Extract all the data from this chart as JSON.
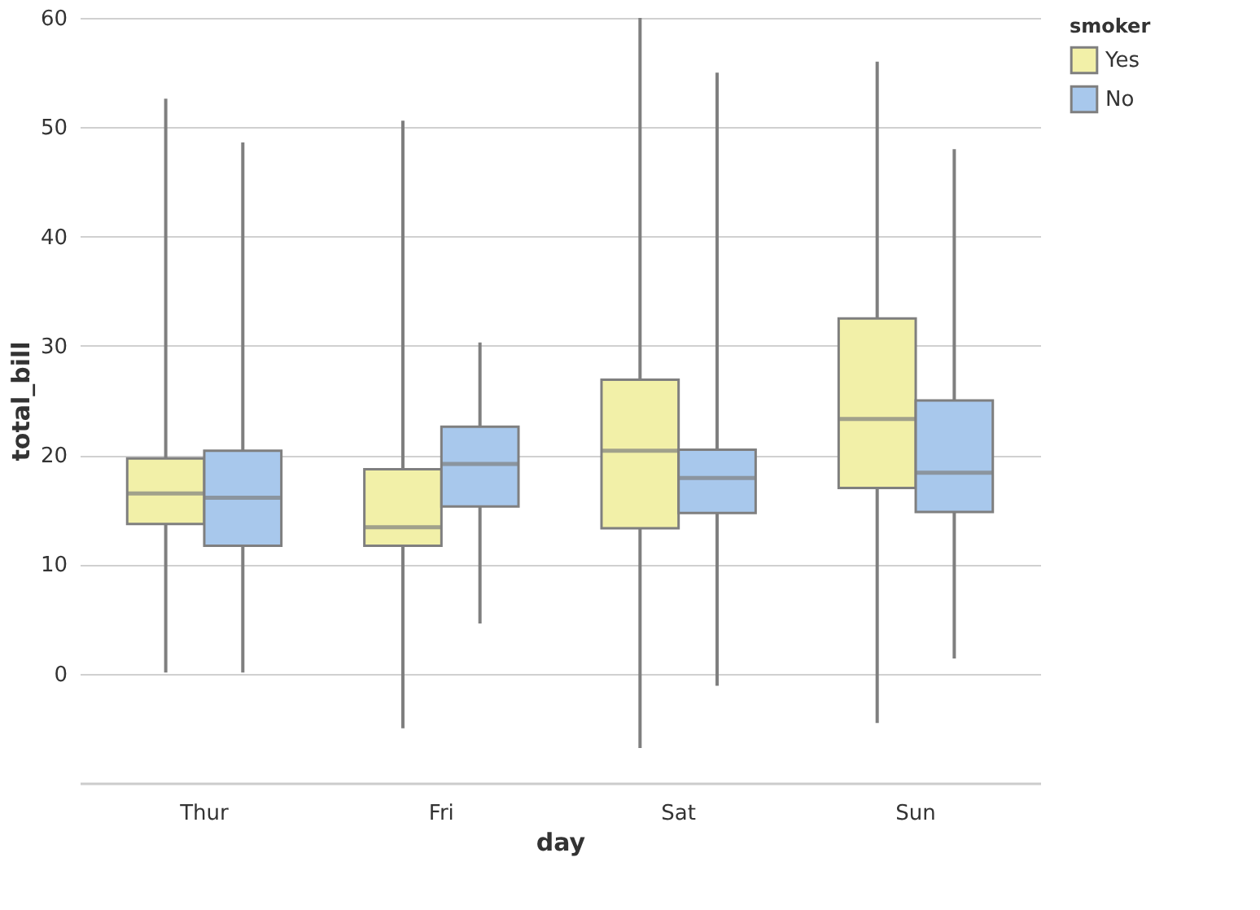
{
  "chart_data": {
    "type": "box",
    "xlabel": "day",
    "ylabel": "total_bill",
    "legend_title": "smoker",
    "legend": "right",
    "grid": "y",
    "categories": [
      "Thur",
      "Fri",
      "Sat",
      "Sun"
    ],
    "ylim": [
      -10,
      60
    ],
    "yticks": [
      0,
      10,
      20,
      30,
      40,
      50,
      60
    ],
    "series": [
      {
        "name": "Yes",
        "color": "#f2f0a8",
        "boxes": [
          {
            "low": 0.1,
            "q1": 13.7,
            "median": 16.5,
            "q3": 19.7,
            "high": 52.6
          },
          {
            "low": -5,
            "q1": 11.7,
            "median": 13.4,
            "q3": 18.7,
            "high": 50.6
          },
          {
            "low": -6.8,
            "q1": 13.3,
            "median": 20.4,
            "q3": 26.9,
            "high": 60
          },
          {
            "low": -4.5,
            "q1": 17.0,
            "median": 23.3,
            "q3": 32.5,
            "high": 56
          }
        ]
      },
      {
        "name": "No",
        "color": "#a8c8ec",
        "boxes": [
          {
            "low": 0.1,
            "q1": 11.7,
            "median": 16.1,
            "q3": 20.4,
            "high": 48.6
          },
          {
            "low": 4.6,
            "q1": 15.3,
            "median": 19.2,
            "q3": 22.6,
            "high": 30.3
          },
          {
            "low": -1.1,
            "q1": 14.7,
            "median": 17.9,
            "q3": 20.5,
            "high": 55
          },
          {
            "low": 1.4,
            "q1": 14.8,
            "median": 18.4,
            "q3": 25.0,
            "high": 48
          }
        ]
      }
    ]
  }
}
